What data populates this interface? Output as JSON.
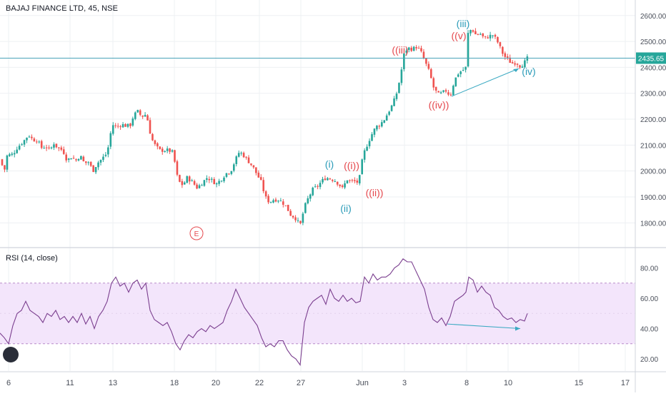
{
  "header": {
    "symbol_title": "BAJAJ FINANCE LTD, 45, NSE",
    "rsi_title": "RSI (14, close)",
    "last_price": "2435.65"
  },
  "colors": {
    "up": "#26a69a",
    "down": "#ef5350",
    "price_line": "#4aa3b8",
    "rsi_line": "#7b3f8f",
    "rsi_band": "#f3e5fb",
    "wave_red": "#e5484d",
    "wave_blue": "#2a9bb8",
    "grid": "#eef0f3"
  },
  "chart_data": [
    {
      "type": "candlestick",
      "title": "BAJAJ FINANCE LTD, 45, NSE",
      "ylim": [
        1710,
        2660
      ],
      "yticks": [
        "1800.00",
        "1900.00",
        "2000.00",
        "2100.00",
        "2200.00",
        "2300.00",
        "2400.00",
        "2500.00",
        "2600.00"
      ],
      "xticks": [
        "6",
        "11",
        "13",
        "18",
        "20",
        "22",
        "27",
        "Jun",
        "3",
        "8",
        "10",
        "15",
        "17"
      ],
      "last_price": 2435.65,
      "close_path": [
        [
          0,
          2045
        ],
        [
          6,
          2000
        ],
        [
          10,
          2060
        ],
        [
          18,
          2065
        ],
        [
          24,
          2090
        ],
        [
          33,
          2115
        ],
        [
          40,
          2140
        ],
        [
          46,
          2120
        ],
        [
          52,
          2120
        ],
        [
          58,
          2090
        ],
        [
          64,
          2095
        ],
        [
          70,
          2080
        ],
        [
          76,
          2110
        ],
        [
          80,
          2090
        ],
        [
          88,
          2080
        ],
        [
          94,
          2040
        ],
        [
          100,
          2055
        ],
        [
          106,
          2040
        ],
        [
          112,
          2060
        ],
        [
          118,
          2030
        ],
        [
          124,
          2035
        ],
        [
          130,
          2000
        ],
        [
          136,
          2030
        ],
        [
          142,
          2045
        ],
        [
          150,
          2070
        ],
        [
          157,
          2180
        ],
        [
          163,
          2170
        ],
        [
          170,
          2180
        ],
        [
          176,
          2175
        ],
        [
          182,
          2175
        ],
        [
          187,
          2215
        ],
        [
          193,
          2230
        ],
        [
          198,
          2210
        ],
        [
          205,
          2220
        ],
        [
          209,
          2160
        ],
        [
          213,
          2120
        ],
        [
          217,
          2100
        ],
        [
          223,
          2080
        ],
        [
          228,
          2080
        ],
        [
          236,
          2080
        ],
        [
          243,
          2070
        ],
        [
          246,
          2000
        ],
        [
          250,
          1960
        ],
        [
          256,
          1945
        ],
        [
          262,
          1975
        ],
        [
          270,
          1955
        ],
        [
          276,
          1935
        ],
        [
          283,
          1955
        ],
        [
          290,
          1975
        ],
        [
          296,
          1965
        ],
        [
          303,
          1950
        ],
        [
          310,
          1970
        ],
        [
          316,
          1990
        ],
        [
          323,
          2000
        ],
        [
          329,
          2040
        ],
        [
          335,
          2075
        ],
        [
          341,
          2060
        ],
        [
          347,
          2040
        ],
        [
          353,
          2020
        ],
        [
          359,
          1990
        ],
        [
          366,
          1955
        ],
        [
          371,
          1900
        ],
        [
          377,
          1880
        ],
        [
          383,
          1890
        ],
        [
          389,
          1890
        ],
        [
          395,
          1880
        ],
        [
          401,
          1860
        ],
        [
          407,
          1830
        ],
        [
          413,
          1820
        ],
        [
          420,
          1790
        ],
        [
          426,
          1860
        ],
        [
          432,
          1900
        ],
        [
          438,
          1930
        ],
        [
          444,
          1940
        ],
        [
          450,
          1960
        ],
        [
          456,
          1975
        ],
        [
          462,
          1970
        ],
        [
          468,
          1965
        ],
        [
          474,
          1950
        ],
        [
          480,
          1930
        ],
        [
          485,
          1970
        ],
        [
          490,
          1960
        ],
        [
          496,
          1960
        ],
        [
          502,
          1955
        ],
        [
          508,
          2060
        ],
        [
          515,
          2110
        ],
        [
          520,
          2140
        ],
        [
          526,
          2170
        ],
        [
          532,
          2180
        ],
        [
          538,
          2200
        ],
        [
          544,
          2230
        ],
        [
          550,
          2260
        ],
        [
          555,
          2300
        ],
        [
          560,
          2360
        ],
        [
          566,
          2460
        ],
        [
          571,
          2475
        ],
        [
          577,
          2470
        ],
        [
          583,
          2480
        ],
        [
          589,
          2460
        ],
        [
          595,
          2420
        ],
        [
          601,
          2380
        ],
        [
          607,
          2320
        ],
        [
          613,
          2295
        ],
        [
          618,
          2300
        ],
        [
          624,
          2310
        ],
        [
          630,
          2290
        ],
        [
          636,
          2350
        ],
        [
          642,
          2380
        ],
        [
          648,
          2390
        ],
        [
          652,
          2400
        ],
        [
          655,
          2530
        ],
        [
          660,
          2550
        ],
        [
          666,
          2525
        ],
        [
          672,
          2530
        ],
        [
          678,
          2510
        ],
        [
          684,
          2520
        ],
        [
          690,
          2525
        ],
        [
          696,
          2500
        ],
        [
          700,
          2475
        ],
        [
          705,
          2445
        ],
        [
          711,
          2430
        ],
        [
          716,
          2415
        ],
        [
          722,
          2420
        ],
        [
          728,
          2405
        ],
        [
          733,
          2415
        ],
        [
          738,
          2435
        ]
      ],
      "annotations": [
        {
          "label": "(i)",
          "color": "blue"
        },
        {
          "label": "((i))",
          "color": "red"
        },
        {
          "label": "(ii)",
          "color": "blue"
        },
        {
          "label": "((ii))",
          "color": "red"
        },
        {
          "label": "((iii)",
          "color": "red"
        },
        {
          "label": "(iii)",
          "color": "blue"
        },
        {
          "label": "((v)",
          "color": "red"
        },
        {
          "label": "((iv))",
          "color": "red"
        },
        {
          "label": "(iv)",
          "color": "blue"
        },
        {
          "label": "E",
          "color": "red"
        }
      ]
    },
    {
      "type": "line",
      "title": "RSI (14, close)",
      "ylim": [
        12,
        92
      ],
      "yticks": [
        "20.00",
        "40.00",
        "60.00",
        "80.00"
      ],
      "band": [
        30,
        70
      ],
      "series": [
        {
          "values": [
            [
              0,
              37
            ],
            [
              6,
              34
            ],
            [
              12,
              30
            ],
            [
              18,
              42
            ],
            [
              24,
              50
            ],
            [
              30,
              52
            ],
            [
              36,
              58
            ],
            [
              42,
              52
            ],
            [
              48,
              50
            ],
            [
              54,
              48
            ],
            [
              60,
              44
            ],
            [
              66,
              50
            ],
            [
              72,
              48
            ],
            [
              78,
              52
            ],
            [
              84,
              46
            ],
            [
              90,
              48
            ],
            [
              96,
              44
            ],
            [
              102,
              48
            ],
            [
              108,
              44
            ],
            [
              114,
              50
            ],
            [
              120,
              43
            ],
            [
              126,
              48
            ],
            [
              132,
              40
            ],
            [
              138,
              48
            ],
            [
              144,
              52
            ],
            [
              150,
              58
            ],
            [
              156,
              70
            ],
            [
              162,
              74
            ],
            [
              168,
              68
            ],
            [
              174,
              70
            ],
            [
              180,
              64
            ],
            [
              186,
              70
            ],
            [
              192,
              72
            ],
            [
              198,
              66
            ],
            [
              204,
              70
            ],
            [
              210,
              52
            ],
            [
              216,
              46
            ],
            [
              222,
              44
            ],
            [
              228,
              42
            ],
            [
              234,
              44
            ],
            [
              240,
              38
            ],
            [
              246,
              30
            ],
            [
              252,
              26
            ],
            [
              258,
              32
            ],
            [
              264,
              36
            ],
            [
              270,
              34
            ],
            [
              276,
              38
            ],
            [
              282,
              40
            ],
            [
              288,
              38
            ],
            [
              294,
              42
            ],
            [
              300,
              40
            ],
            [
              306,
              42
            ],
            [
              312,
              44
            ],
            [
              318,
              52
            ],
            [
              324,
              58
            ],
            [
              330,
              66
            ],
            [
              336,
              60
            ],
            [
              342,
              54
            ],
            [
              348,
              50
            ],
            [
              354,
              46
            ],
            [
              360,
              42
            ],
            [
              366,
              34
            ],
            [
              372,
              28
            ],
            [
              378,
              30
            ],
            [
              384,
              28
            ],
            [
              390,
              32
            ],
            [
              396,
              32
            ],
            [
              402,
              26
            ],
            [
              408,
              22
            ],
            [
              414,
              20
            ],
            [
              420,
              16
            ],
            [
              426,
              44
            ],
            [
              432,
              54
            ],
            [
              438,
              58
            ],
            [
              444,
              60
            ],
            [
              450,
              62
            ],
            [
              456,
              56
            ],
            [
              462,
              66
            ],
            [
              468,
              60
            ],
            [
              474,
              58
            ],
            [
              480,
              62
            ],
            [
              486,
              58
            ],
            [
              492,
              60
            ],
            [
              498,
              57
            ],
            [
              504,
              58
            ],
            [
              510,
              74
            ],
            [
              516,
              70
            ],
            [
              522,
              76
            ],
            [
              528,
              72
            ],
            [
              534,
              74
            ],
            [
              540,
              74
            ],
            [
              546,
              76
            ],
            [
              552,
              80
            ],
            [
              558,
              82
            ],
            [
              564,
              86
            ],
            [
              570,
              84
            ],
            [
              576,
              84
            ],
            [
              582,
              78
            ],
            [
              588,
              72
            ],
            [
              594,
              66
            ],
            [
              600,
              54
            ],
            [
              606,
              46
            ],
            [
              612,
              44
            ],
            [
              618,
              47
            ],
            [
              624,
              42
            ],
            [
              630,
              48
            ],
            [
              636,
              58
            ],
            [
              642,
              60
            ],
            [
              648,
              62
            ],
            [
              652,
              64
            ],
            [
              656,
              74
            ],
            [
              662,
              72
            ],
            [
              668,
              64
            ],
            [
              674,
              68
            ],
            [
              680,
              64
            ],
            [
              686,
              62
            ],
            [
              692,
              54
            ],
            [
              698,
              52
            ],
            [
              704,
              48
            ],
            [
              710,
              46
            ],
            [
              716,
              47
            ],
            [
              722,
              44
            ],
            [
              728,
              46
            ],
            [
              734,
              45
            ],
            [
              738,
              50
            ]
          ]
        }
      ]
    }
  ]
}
